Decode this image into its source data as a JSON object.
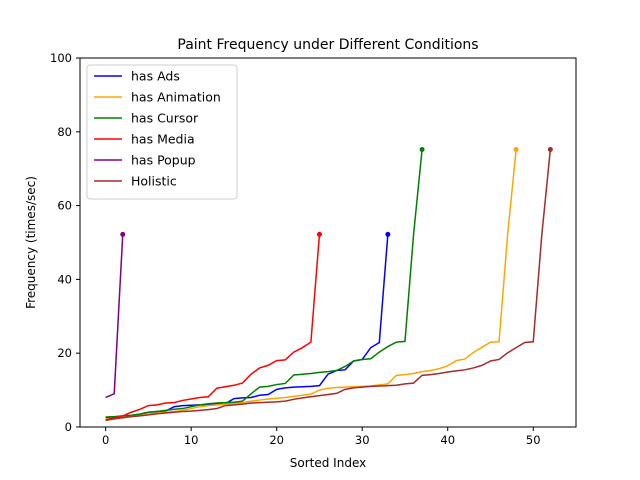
{
  "chart_data": {
    "type": "line",
    "title": "Paint Frequency under Different Conditions",
    "xlabel": "Sorted Index",
    "ylabel": "Frequency (times/sec)",
    "xlim": [
      -3,
      55
    ],
    "ylim": [
      0,
      100
    ],
    "xticks": [
      0,
      10,
      20,
      30,
      40,
      50
    ],
    "yticks": [
      0,
      20,
      40,
      60,
      80,
      100
    ],
    "grid": false,
    "legend_position": "top-left",
    "series": [
      {
        "name": "has Ads",
        "color": "#0000ff",
        "values": [
          2.4,
          2.5,
          2.7,
          3.0,
          3.5,
          4.0,
          4.2,
          4.3,
          5.5,
          5.8,
          5.9,
          6.0,
          6.1,
          6.2,
          6.3,
          7.7,
          7.9,
          8.0,
          8.6,
          8.8,
          10.2,
          10.6,
          10.8,
          10.9,
          11.0,
          11.2,
          14.3,
          15.3,
          15.5,
          17.9,
          18.3,
          21.5,
          22.9,
          52.2
        ]
      },
      {
        "name": "has Animation",
        "color": "#ffa500",
        "values": [
          2.2,
          2.4,
          2.8,
          3.0,
          3.2,
          3.5,
          3.8,
          4.0,
          4.2,
          4.5,
          5.0,
          5.5,
          5.8,
          6.0,
          6.2,
          6.4,
          6.6,
          7.0,
          7.3,
          7.6,
          7.8,
          8.0,
          8.3,
          8.6,
          8.9,
          10.0,
          10.5,
          10.7,
          10.8,
          10.9,
          11.0,
          11.1,
          11.4,
          11.7,
          14.0,
          14.2,
          14.5,
          15.0,
          15.3,
          15.8,
          16.6,
          18.0,
          18.4,
          20.2,
          21.6,
          23.0,
          23.1,
          52.0,
          75.2
        ]
      },
      {
        "name": "has Cursor",
        "color": "#008000",
        "values": [
          2.7,
          2.8,
          3.0,
          3.2,
          3.5,
          4.0,
          4.2,
          4.5,
          4.8,
          5.0,
          5.5,
          6.0,
          6.3,
          6.5,
          6.6,
          6.7,
          7.0,
          9.0,
          10.8,
          11.0,
          11.5,
          11.8,
          14.1,
          14.3,
          14.5,
          14.8,
          15.0,
          15.3,
          16.4,
          17.9,
          18.3,
          18.5,
          20.3,
          21.8,
          23.0,
          23.2,
          52.0,
          75.2
        ]
      },
      {
        "name": "has Media",
        "color": "#ff0000",
        "values": [
          1.9,
          2.5,
          3.0,
          4.0,
          4.8,
          5.8,
          6.0,
          6.5,
          6.6,
          7.2,
          7.6,
          8.0,
          8.2,
          10.5,
          10.9,
          11.3,
          11.9,
          14.3,
          16.0,
          16.7,
          18.0,
          18.2,
          20.3,
          21.5,
          23.0,
          52.2
        ]
      },
      {
        "name": "has Popup",
        "color": "#800080",
        "values": [
          8.0,
          9.0,
          52.2
        ]
      },
      {
        "name": "Holistic",
        "color": "#a52a2a",
        "values": [
          1.8,
          2.2,
          2.5,
          2.8,
          3.0,
          3.3,
          3.6,
          3.8,
          4.0,
          4.2,
          4.3,
          4.5,
          4.7,
          5.0,
          5.8,
          6.0,
          6.2,
          6.5,
          6.6,
          6.7,
          6.8,
          7.0,
          7.5,
          7.9,
          8.2,
          8.5,
          8.8,
          9.1,
          10.2,
          10.6,
          10.8,
          11.0,
          11.1,
          11.2,
          11.3,
          11.7,
          11.9,
          14.0,
          14.2,
          14.5,
          14.9,
          15.2,
          15.5,
          16.0,
          16.7,
          17.9,
          18.3,
          20.1,
          21.5,
          22.9,
          23.1,
          52.0,
          75.2
        ]
      }
    ]
  }
}
